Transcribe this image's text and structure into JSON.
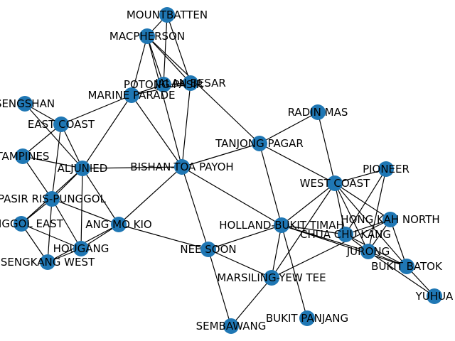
{
  "graph": {
    "node_color": "#1f77b4",
    "edge_color": "#000000",
    "label_color": "#000000",
    "nodes": [
      {
        "id": "MOUNTBATTEN",
        "label": "MOUNTBATTEN"
      },
      {
        "id": "MACPHERSON",
        "label": "MACPHERSON"
      },
      {
        "id": "POTONG PASIR",
        "label": "POTONG PASIR"
      },
      {
        "id": "JALAN BESAR",
        "label": "JALAN BESAR"
      },
      {
        "id": "MARINE PARADE",
        "label": "MARINE PARADE"
      },
      {
        "id": "SENGSHAN",
        "label": "SENGSHAN"
      },
      {
        "id": "EAST COAST",
        "label": "EAST COAST"
      },
      {
        "id": "TAMPINES",
        "label": "TAMPINES"
      },
      {
        "id": "ALJUNIED",
        "label": "ALJUNIED"
      },
      {
        "id": "BISHAN-TOA PAYOH",
        "label": "BISHAN-TOA PAYOH"
      },
      {
        "id": "TANJONG PAGAR",
        "label": "TANJONG PAGAR"
      },
      {
        "id": "RADIN MAS",
        "label": "RADIN MAS"
      },
      {
        "id": "PASIR RIS-PUNGGOL",
        "label": "PASIR RIS-PUNGGOL"
      },
      {
        "id": "PUNGGOL EAST",
        "label": "PUNGGOL EAST"
      },
      {
        "id": "SENGKANG WEST",
        "label": "SENGKANG WEST"
      },
      {
        "id": "HOUGANG",
        "label": "HOUGANG"
      },
      {
        "id": "ANG MO KIO",
        "label": "ANG MO KIO"
      },
      {
        "id": "NEE SOON",
        "label": "NEE SOON"
      },
      {
        "id": "SEMBAWANG",
        "label": "SEMBAWANG"
      },
      {
        "id": "MARSILING-YEW TEE",
        "label": "MARSILING-YEW TEE"
      },
      {
        "id": "HOLLAND-BUKIT TIMAH",
        "label": "HOLLAND-BUKIT TIMAH"
      },
      {
        "id": "BUKIT PANJANG",
        "label": "BUKIT PANJANG"
      },
      {
        "id": "WEST COAST",
        "label": "WEST COAST"
      },
      {
        "id": "PIONEER",
        "label": "PIONEER"
      },
      {
        "id": "HONG KAH NORTH",
        "label": "HONG KAH NORTH"
      },
      {
        "id": "CHUA CHU KANG",
        "label": "CHUA CHU KANG"
      },
      {
        "id": "JURONG",
        "label": "JURONG"
      },
      {
        "id": "BUKIT BATOK",
        "label": "BUKIT BATOK"
      },
      {
        "id": "YUHUA",
        "label": "YUHUA"
      }
    ],
    "edges": [
      [
        "MOUNTBATTEN",
        "MACPHERSON"
      ],
      [
        "MOUNTBATTEN",
        "JALAN BESAR"
      ],
      [
        "MOUNTBATTEN",
        "POTONG PASIR"
      ],
      [
        "MACPHERSON",
        "POTONG PASIR"
      ],
      [
        "MACPHERSON",
        "JALAN BESAR"
      ],
      [
        "MACPHERSON",
        "MARINE PARADE"
      ],
      [
        "MACPHERSON",
        "BISHAN-TOA PAYOH"
      ],
      [
        "MACPHERSON",
        "TANJONG PAGAR"
      ],
      [
        "POTONG PASIR",
        "MARINE PARADE"
      ],
      [
        "POTONG PASIR",
        "JALAN BESAR"
      ],
      [
        "JALAN BESAR",
        "MARINE PARADE"
      ],
      [
        "JALAN BESAR",
        "BISHAN-TOA PAYOH"
      ],
      [
        "MARINE PARADE",
        "EAST COAST"
      ],
      [
        "MARINE PARADE",
        "ALJUNIED"
      ],
      [
        "MARINE PARADE",
        "BISHAN-TOA PAYOH"
      ],
      [
        "SENGSHAN",
        "EAST COAST"
      ],
      [
        "SENGSHAN",
        "ALJUNIED"
      ],
      [
        "EAST COAST",
        "TAMPINES"
      ],
      [
        "EAST COAST",
        "ALJUNIED"
      ],
      [
        "EAST COAST",
        "PASIR RIS-PUNGGOL"
      ],
      [
        "TAMPINES",
        "ALJUNIED"
      ],
      [
        "TAMPINES",
        "PASIR RIS-PUNGGOL"
      ],
      [
        "ALJUNIED",
        "BISHAN-TOA PAYOH"
      ],
      [
        "ALJUNIED",
        "PASIR RIS-PUNGGOL"
      ],
      [
        "ALJUNIED",
        "HOUGANG"
      ],
      [
        "ALJUNIED",
        "ANG MO KIO"
      ],
      [
        "ALJUNIED",
        "PUNGGOL EAST"
      ],
      [
        "BISHAN-TOA PAYOH",
        "TANJONG PAGAR"
      ],
      [
        "BISHAN-TOA PAYOH",
        "ANG MO KIO"
      ],
      [
        "BISHAN-TOA PAYOH",
        "NEE SOON"
      ],
      [
        "BISHAN-TOA PAYOH",
        "HOLLAND-BUKIT TIMAH"
      ],
      [
        "TANJONG PAGAR",
        "HOLLAND-BUKIT TIMAH"
      ],
      [
        "TANJONG PAGAR",
        "WEST COAST"
      ],
      [
        "RADIN MAS",
        "TANJONG PAGAR"
      ],
      [
        "RADIN MAS",
        "WEST COAST"
      ],
      [
        "PASIR RIS-PUNGGOL",
        "PUNGGOL EAST"
      ],
      [
        "PASIR RIS-PUNGGOL",
        "SENGKANG WEST"
      ],
      [
        "PASIR RIS-PUNGGOL",
        "HOUGANG"
      ],
      [
        "PASIR RIS-PUNGGOL",
        "ANG MO KIO"
      ],
      [
        "PUNGGOL EAST",
        "SENGKANG WEST"
      ],
      [
        "PUNGGOL EAST",
        "HOUGANG"
      ],
      [
        "SENGKANG WEST",
        "HOUGANG"
      ],
      [
        "SENGKANG WEST",
        "ANG MO KIO"
      ],
      [
        "HOUGANG",
        "ANG MO KIO"
      ],
      [
        "ANG MO KIO",
        "NEE SOON"
      ],
      [
        "NEE SOON",
        "HOLLAND-BUKIT TIMAH"
      ],
      [
        "NEE SOON",
        "MARSILING-YEW TEE"
      ],
      [
        "NEE SOON",
        "SEMBAWANG"
      ],
      [
        "SEMBAWANG",
        "MARSILING-YEW TEE"
      ],
      [
        "MARSILING-YEW TEE",
        "HOLLAND-BUKIT TIMAH"
      ],
      [
        "MARSILING-YEW TEE",
        "WEST COAST"
      ],
      [
        "MARSILING-YEW TEE",
        "HONG KAH NORTH"
      ],
      [
        "HOLLAND-BUKIT TIMAH",
        "BUKIT PANJANG"
      ],
      [
        "HOLLAND-BUKIT TIMAH",
        "WEST COAST"
      ],
      [
        "HOLLAND-BUKIT TIMAH",
        "CHUA CHU KANG"
      ],
      [
        "HOLLAND-BUKIT TIMAH",
        "JURONG"
      ],
      [
        "HOLLAND-BUKIT TIMAH",
        "BUKIT BATOK"
      ],
      [
        "WEST COAST",
        "PIONEER"
      ],
      [
        "WEST COAST",
        "HONG KAH NORTH"
      ],
      [
        "WEST COAST",
        "CHUA CHU KANG"
      ],
      [
        "WEST COAST",
        "JURONG"
      ],
      [
        "WEST COAST",
        "BUKIT BATOK"
      ],
      [
        "PIONEER",
        "CHUA CHU KANG"
      ],
      [
        "PIONEER",
        "JURONG"
      ],
      [
        "HONG KAH NORTH",
        "CHUA CHU KANG"
      ],
      [
        "HONG KAH NORTH",
        "JURONG"
      ],
      [
        "HONG KAH NORTH",
        "BUKIT BATOK"
      ],
      [
        "CHUA CHU KANG",
        "JURONG"
      ],
      [
        "CHUA CHU KANG",
        "BUKIT BATOK"
      ],
      [
        "JURONG",
        "BUKIT BATOK"
      ],
      [
        "JURONG",
        "YUHUA"
      ],
      [
        "BUKIT BATOK",
        "YUHUA"
      ]
    ]
  }
}
